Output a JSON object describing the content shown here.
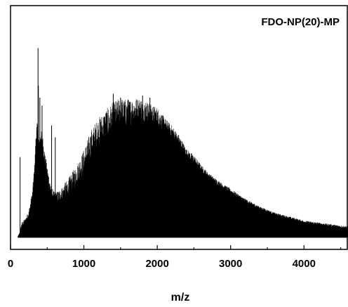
{
  "chart_data": {
    "type": "line",
    "title": "FDO-NP(20)-MP",
    "xlabel": "m/z",
    "ylabel": "",
    "xlim": [
      0,
      4600
    ],
    "ylim": [
      0,
      1
    ],
    "grid": false,
    "legend": "none",
    "x_ticks": [
      0,
      1000,
      2000,
      3000,
      4000
    ],
    "x_tick_labels": [
      "0",
      "1000",
      "2000",
      "3000",
      "4000"
    ],
    "y_ticks_labeled": false,
    "series": [
      {
        "color": "#000000",
        "baseline": 0.015,
        "upper_envelope": {
          "x": [
            100,
            130,
            150,
            200,
            250,
            300,
            330,
            350,
            370,
            390,
            410,
            430,
            450,
            470,
            500,
            550,
            600,
            650,
            700,
            800,
            900,
            1000,
            1100,
            1200,
            1300,
            1400,
            1500,
            1600,
            1700,
            1800,
            1900,
            2000,
            2100,
            2200,
            2300,
            2400,
            2500,
            2600,
            2700,
            2800,
            3000,
            3200,
            3400,
            3600,
            3800,
            4000,
            4200,
            4400,
            4600
          ],
          "y": [
            0.02,
            0.04,
            0.09,
            0.11,
            0.15,
            0.26,
            0.4,
            0.58,
            0.6,
            0.5,
            0.54,
            0.56,
            0.49,
            0.44,
            0.38,
            0.28,
            0.24,
            0.25,
            0.27,
            0.32,
            0.38,
            0.46,
            0.56,
            0.62,
            0.66,
            0.7,
            0.72,
            0.71,
            0.72,
            0.72,
            0.69,
            0.67,
            0.62,
            0.58,
            0.53,
            0.46,
            0.43,
            0.38,
            0.34,
            0.31,
            0.26,
            0.21,
            0.17,
            0.14,
            0.12,
            0.1,
            0.09,
            0.08,
            0.07
          ]
        },
        "dense_body": {
          "x": [
            100,
            150,
            200,
            250,
            300,
            330,
            350,
            370,
            390,
            410,
            430,
            450,
            470,
            500,
            550,
            600,
            650,
            700,
            800,
            900,
            1000,
            1100,
            1200,
            1300,
            1400,
            1500,
            1600,
            1700,
            1800,
            1900,
            2000,
            2100,
            2200,
            2300,
            2400,
            2500,
            2600,
            2800,
            3000,
            3200,
            3400,
            3600,
            3800,
            4000,
            4200,
            4400,
            4600
          ],
          "y": [
            0.02,
            0.05,
            0.07,
            0.1,
            0.16,
            0.3,
            0.43,
            0.47,
            0.46,
            0.47,
            0.45,
            0.39,
            0.33,
            0.24,
            0.19,
            0.17,
            0.16,
            0.16,
            0.18,
            0.22,
            0.26,
            0.32,
            0.38,
            0.42,
            0.45,
            0.48,
            0.5,
            0.52,
            0.53,
            0.54,
            0.53,
            0.51,
            0.48,
            0.44,
            0.4,
            0.36,
            0.33,
            0.27,
            0.22,
            0.18,
            0.15,
            0.12,
            0.1,
            0.08,
            0.07,
            0.06,
            0.05
          ]
        },
        "isolated_peaks": [
          {
            "x": 130,
            "y": 0.42
          },
          {
            "x": 375,
            "y": 0.97
          },
          {
            "x": 380,
            "y": 0.78
          },
          {
            "x": 400,
            "y": 0.72
          },
          {
            "x": 430,
            "y": 0.68
          },
          {
            "x": 560,
            "y": 0.58
          },
          {
            "x": 610,
            "y": 0.52
          },
          {
            "x": 1400,
            "y": 0.74
          },
          {
            "x": 1500,
            "y": 0.72
          },
          {
            "x": 1600,
            "y": 0.71
          },
          {
            "x": 1800,
            "y": 0.73
          },
          {
            "x": 1900,
            "y": 0.72
          }
        ],
        "spacing": 23
      }
    ]
  }
}
